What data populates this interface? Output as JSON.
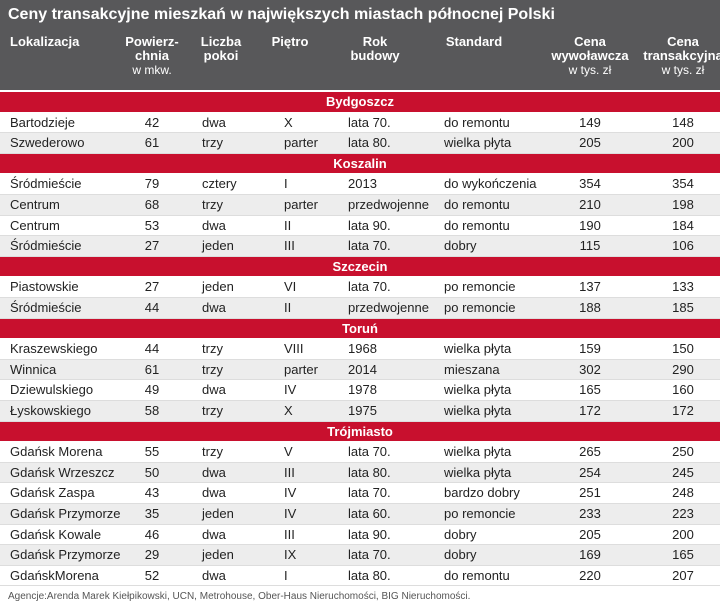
{
  "header": {
    "title": "Ceny transakcyjne mieszkań w największych miastach północnej Polski"
  },
  "table": {
    "columns": [
      {
        "label": [
          "Lokalizacja"
        ]
      },
      {
        "label": [
          "Powierz-",
          "chnia"
        ],
        "unit": "w mkw."
      },
      {
        "label": [
          "Liczba",
          "pokoi"
        ]
      },
      {
        "label": [
          "Piętro"
        ]
      },
      {
        "label": [
          "Rok",
          "budowy"
        ]
      },
      {
        "label": [
          "Standard"
        ]
      },
      {
        "label": [
          "Cena",
          "wywoławcza"
        ],
        "unit": "w tys. zł"
      },
      {
        "label": [
          "Cena",
          "transakcyjna"
        ],
        "unit": "w tys. zł"
      }
    ],
    "sections": [
      {
        "name": "Bydgoszcz",
        "rows": [
          [
            "Bartodzieje",
            "42",
            "dwa",
            "X",
            "lata 70.",
            "do remontu",
            "149",
            "148"
          ],
          [
            "Szwederowo",
            "61",
            "trzy",
            "parter",
            "lata 80.",
            "wielka płyta",
            "205",
            "200"
          ]
        ]
      },
      {
        "name": "Koszalin",
        "rows": [
          [
            "Śródmieście",
            "79",
            "cztery",
            "I",
            "2013",
            "do wykończenia",
            "354",
            "354"
          ],
          [
            "Centrum",
            "68",
            "trzy",
            "parter",
            "przedwojenne",
            "do remontu",
            "210",
            "198"
          ],
          [
            "Centrum",
            "53",
            "dwa",
            "II",
            "lata 90.",
            "do remontu",
            "190",
            "184"
          ],
          [
            "Śródmieście",
            "27",
            "jeden",
            "III",
            "lata 70.",
            "dobry",
            "115",
            "106"
          ]
        ]
      },
      {
        "name": "Szczecin",
        "rows": [
          [
            "Piastowskie",
            "27",
            "jeden",
            "VI",
            "lata 70.",
            "po remoncie",
            "137",
            "133"
          ],
          [
            "Śródmieście",
            "44",
            "dwa",
            "II",
            "przedwojenne",
            "po remoncie",
            "188",
            "185"
          ]
        ]
      },
      {
        "name": "Toruń",
        "rows": [
          [
            "Kraszewskiego",
            "44",
            "trzy",
            "VIII",
            "1968",
            "wielka płyta",
            "159",
            "150"
          ],
          [
            "Winnica",
            "61",
            "trzy",
            "parter",
            "2014",
            "mieszana",
            "302",
            "290"
          ],
          [
            "Dziewulskiego",
            "49",
            "dwa",
            "IV",
            "1978",
            "wielka płyta",
            "165",
            "160"
          ],
          [
            "Łyskowskiego",
            "58",
            "trzy",
            "X",
            "1975",
            "wielka płyta",
            "172",
            "172"
          ]
        ]
      },
      {
        "name": "Trójmiasto",
        "rows": [
          [
            "Gdańsk Morena",
            "55",
            "trzy",
            "V",
            "lata 70.",
            "wielka płyta",
            "265",
            "250"
          ],
          [
            "Gdańsk Wrzeszcz",
            "50",
            "dwa",
            "III",
            "lata 80.",
            "wielka płyta",
            "254",
            "245"
          ],
          [
            "Gdańsk Zaspa",
            "43",
            "dwa",
            "IV",
            "lata 70.",
            "bardzo dobry",
            "251",
            "248"
          ],
          [
            "Gdańsk Przymorze",
            "35",
            "jeden",
            "IV",
            "lata 60.",
            "po remoncie",
            "233",
            "223"
          ],
          [
            "Gdańsk Kowale",
            "46",
            "dwa",
            "III",
            "lata 90.",
            "dobry",
            "205",
            "200"
          ],
          [
            "Gdańsk Przymorze",
            "29",
            "jeden",
            "IX",
            "lata 70.",
            "dobry",
            "169",
            "165"
          ],
          [
            "GdańskMorena",
            "52",
            "dwa",
            "I",
            "lata 80.",
            "do remontu",
            "220",
            "207"
          ]
        ]
      }
    ]
  },
  "footer": {
    "source": "Agencje:Arenda Marek Kiełpikowski,  UCN, Metrohouse, Ober-Haus Nieruchomości, BIG Nieruchomości."
  }
}
